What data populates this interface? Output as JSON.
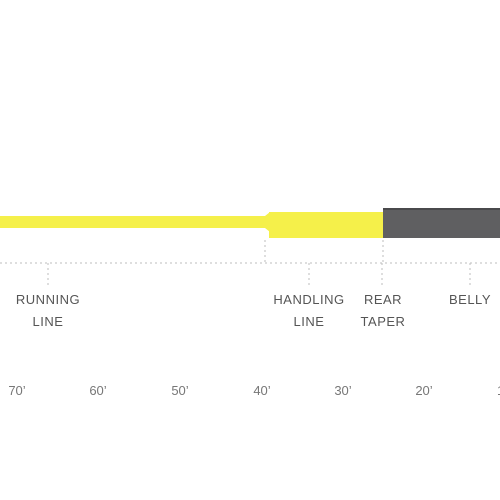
{
  "colors": {
    "yellow_line": "#f5f04a",
    "yellow_edge": "#d9d335",
    "gray_line": "#5f5f61",
    "gray_edge": "#4a4a4c",
    "ruler": "#bdbdbd",
    "label_text": "#555555",
    "scale_text": "#777777"
  },
  "sections": {
    "running_line": {
      "line1": "RUNNING",
      "line2": "LINE"
    },
    "handling_line": {
      "line1": "HANDLING",
      "line2": "LINE"
    },
    "rear_taper": {
      "line1": "REAR",
      "line2": "TAPER"
    },
    "belly": {
      "line1": "BELLY"
    }
  },
  "scale": [
    "70’",
    "60’",
    "50’",
    "40’",
    "30’",
    "20’",
    "1"
  ]
}
